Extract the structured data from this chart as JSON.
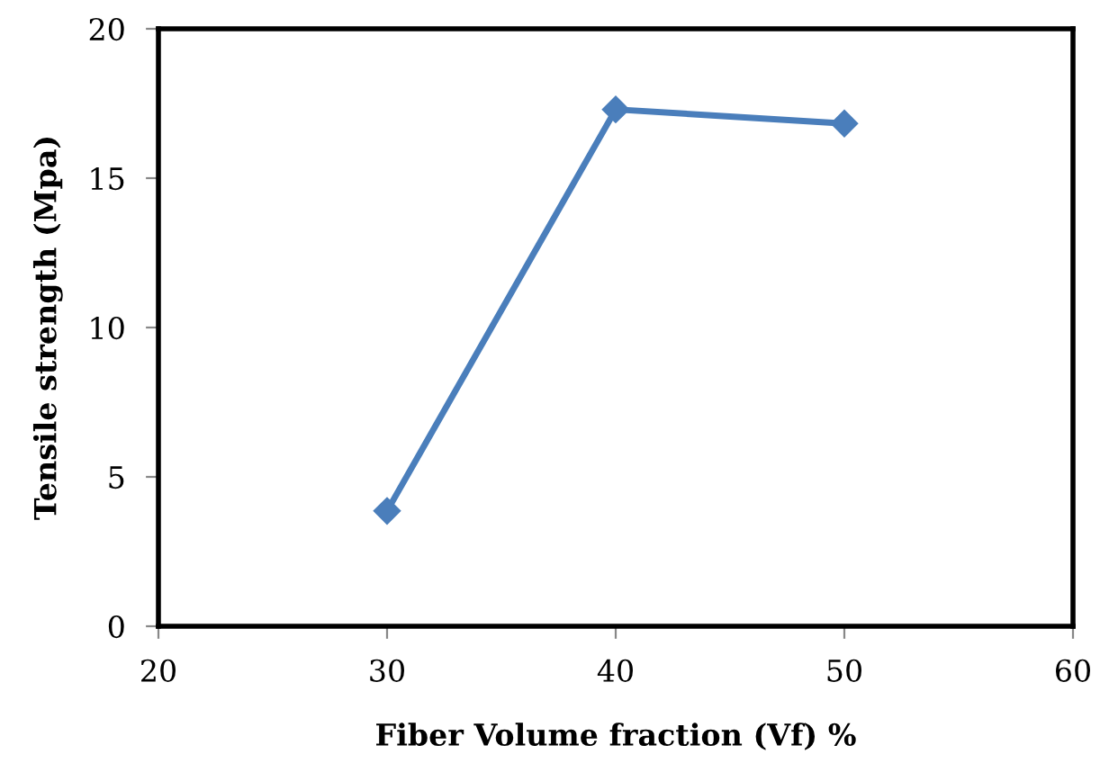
{
  "chart_data": {
    "type": "line",
    "xlabel": "Fiber Volume fraction (Vf) %",
    "ylabel": "Tensile strength (Mpa)",
    "x": [
      30,
      40,
      50
    ],
    "series": [
      {
        "color": "#4a7ebb",
        "values": [
          3.86,
          17.3,
          16.83
        ]
      }
    ],
    "xlim": [
      20,
      60
    ],
    "xticks": [
      20,
      30,
      40,
      50,
      60
    ],
    "ylim": [
      0,
      20
    ],
    "yticks": [
      0,
      5,
      10,
      15,
      20
    ],
    "marker": "diamond",
    "line_style": "solid",
    "grid": false,
    "legend": false
  }
}
